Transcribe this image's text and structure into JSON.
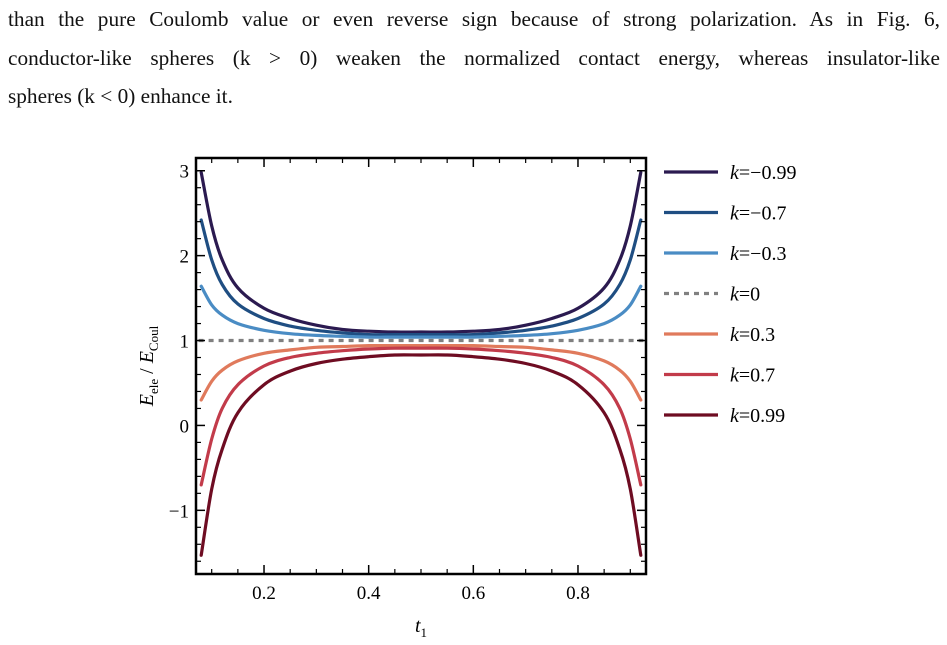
{
  "paragraph": {
    "line1": "than the pure Coulomb value or even reverse sign because of strong polarization. As in Fig. 6,",
    "line2": "conductor-like spheres (k > 0) weaken the normalized contact energy, whereas insulator-like",
    "line3": "spheres (k < 0) enhance it."
  },
  "chart_data": {
    "type": "line",
    "xlabel": "t1",
    "ylabel": "Eele / ECoul",
    "xlim": [
      0.07,
      0.93
    ],
    "ylim": [
      -1.75,
      3.15
    ],
    "xticks": [
      0.2,
      0.4,
      0.6,
      0.8
    ],
    "xtick_labels": [
      "0.2",
      "0.4",
      "0.6",
      "0.8"
    ],
    "yticks": [
      -1,
      0,
      1,
      2,
      3
    ],
    "ytick_labels": [
      "−1",
      "0",
      "1",
      "2",
      "3"
    ],
    "grid": false,
    "legend_position": "right",
    "series": [
      {
        "name": "k=−0.99",
        "color": "#2b1a50",
        "dashed": false,
        "x": [
          0.08,
          0.1,
          0.12,
          0.15,
          0.2,
          0.25,
          0.3,
          0.35,
          0.4,
          0.45,
          0.5,
          0.55,
          0.6,
          0.65,
          0.7,
          0.75,
          0.8,
          0.85,
          0.88,
          0.9,
          0.92
        ],
        "y": [
          2.98,
          2.35,
          1.95,
          1.62,
          1.38,
          1.26,
          1.18,
          1.13,
          1.11,
          1.1,
          1.1,
          1.1,
          1.11,
          1.13,
          1.18,
          1.26,
          1.38,
          1.62,
          1.95,
          2.35,
          2.98
        ]
      },
      {
        "name": "k=−0.7",
        "color": "#1f4e82",
        "dashed": false,
        "x": [
          0.08,
          0.1,
          0.12,
          0.15,
          0.2,
          0.25,
          0.3,
          0.35,
          0.4,
          0.45,
          0.5,
          0.55,
          0.6,
          0.65,
          0.7,
          0.75,
          0.8,
          0.85,
          0.88,
          0.9,
          0.92
        ],
        "y": [
          2.42,
          1.95,
          1.66,
          1.43,
          1.26,
          1.17,
          1.12,
          1.09,
          1.07,
          1.07,
          1.07,
          1.07,
          1.07,
          1.09,
          1.12,
          1.17,
          1.26,
          1.43,
          1.66,
          1.95,
          2.42
        ]
      },
      {
        "name": "k=−0.3",
        "color": "#4a8cc4",
        "dashed": false,
        "x": [
          0.08,
          0.1,
          0.12,
          0.15,
          0.2,
          0.25,
          0.3,
          0.35,
          0.4,
          0.45,
          0.5,
          0.55,
          0.6,
          0.65,
          0.7,
          0.75,
          0.8,
          0.85,
          0.88,
          0.9,
          0.92
        ],
        "y": [
          1.64,
          1.42,
          1.3,
          1.2,
          1.12,
          1.08,
          1.06,
          1.05,
          1.04,
          1.04,
          1.04,
          1.04,
          1.04,
          1.05,
          1.06,
          1.08,
          1.12,
          1.2,
          1.3,
          1.42,
          1.64
        ]
      },
      {
        "name": "k=0",
        "color": "#808080",
        "dashed": true,
        "x": [
          0.075,
          0.925
        ],
        "y": [
          1.0,
          1.0
        ]
      },
      {
        "name": "k=0.3",
        "color": "#e07a5c",
        "dashed": false,
        "x": [
          0.08,
          0.1,
          0.12,
          0.15,
          0.2,
          0.25,
          0.3,
          0.35,
          0.4,
          0.45,
          0.5,
          0.55,
          0.6,
          0.65,
          0.7,
          0.75,
          0.8,
          0.85,
          0.88,
          0.9,
          0.92
        ],
        "y": [
          0.3,
          0.52,
          0.65,
          0.76,
          0.85,
          0.89,
          0.92,
          0.93,
          0.94,
          0.94,
          0.94,
          0.94,
          0.94,
          0.93,
          0.92,
          0.89,
          0.85,
          0.76,
          0.65,
          0.52,
          0.3
        ]
      },
      {
        "name": "k=0.7",
        "color": "#c23b4a",
        "dashed": false,
        "x": [
          0.08,
          0.1,
          0.12,
          0.15,
          0.2,
          0.25,
          0.3,
          0.35,
          0.4,
          0.45,
          0.5,
          0.55,
          0.6,
          0.65,
          0.7,
          0.75,
          0.8,
          0.85,
          0.88,
          0.9,
          0.92
        ],
        "y": [
          -0.7,
          -0.16,
          0.2,
          0.48,
          0.7,
          0.8,
          0.85,
          0.88,
          0.9,
          0.91,
          0.91,
          0.91,
          0.9,
          0.88,
          0.85,
          0.8,
          0.7,
          0.48,
          0.2,
          -0.16,
          -0.7
        ]
      },
      {
        "name": "k=0.99",
        "color": "#6e0c22",
        "dashed": false,
        "x": [
          0.08,
          0.1,
          0.12,
          0.15,
          0.2,
          0.25,
          0.3,
          0.35,
          0.4,
          0.45,
          0.5,
          0.55,
          0.6,
          0.65,
          0.7,
          0.75,
          0.8,
          0.85,
          0.88,
          0.9,
          0.92
        ],
        "y": [
          -1.53,
          -0.75,
          -0.28,
          0.15,
          0.48,
          0.64,
          0.73,
          0.78,
          0.81,
          0.83,
          0.83,
          0.83,
          0.81,
          0.78,
          0.73,
          0.64,
          0.48,
          0.15,
          -0.28,
          -0.75,
          -1.53
        ]
      }
    ]
  }
}
